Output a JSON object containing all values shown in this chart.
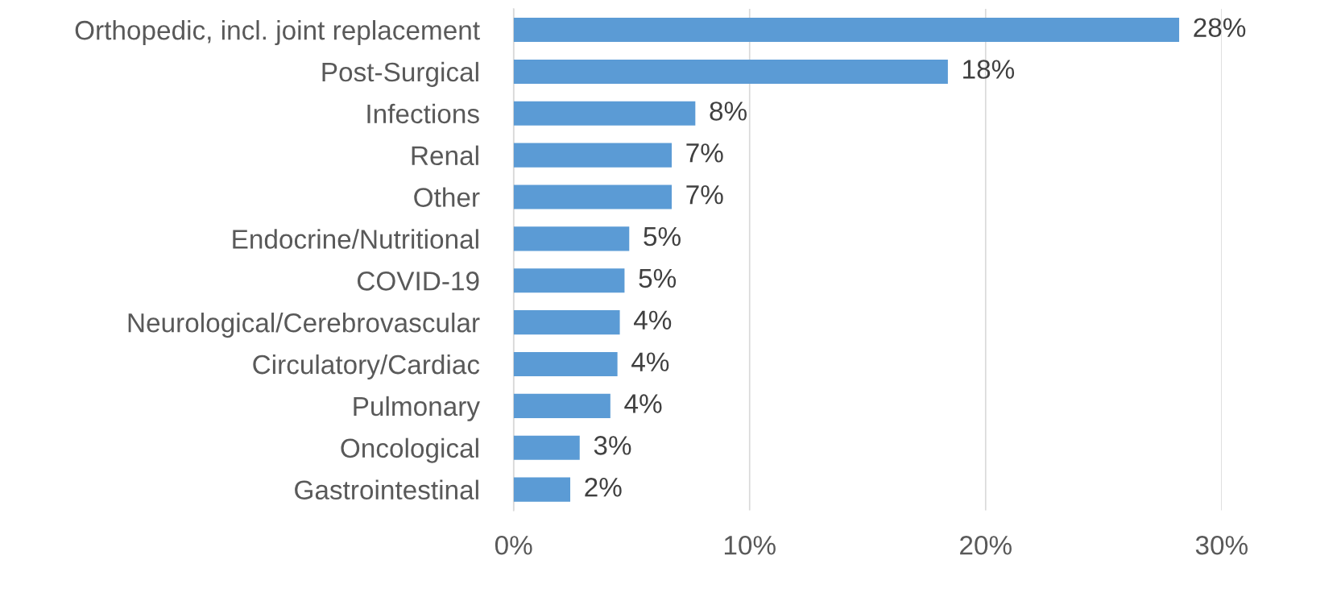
{
  "chart_data": {
    "type": "bar",
    "orientation": "horizontal",
    "categories": [
      "Orthopedic, incl. joint replacement",
      "Post-Surgical",
      "Infections",
      "Renal",
      "Other",
      "Endocrine/Nutritional",
      "COVID-19",
      "Neurological/Cerebrovascular",
      "Circulatory/Cardiac",
      "Pulmonary",
      "Oncological",
      "Gastrointestinal"
    ],
    "values": [
      28.2,
      18.4,
      7.7,
      6.7,
      6.7,
      4.9,
      4.7,
      4.5,
      4.4,
      4.1,
      2.8,
      2.4
    ],
    "value_labels": [
      "28%",
      "18%",
      "8%",
      "7%",
      "7%",
      "5%",
      "5%",
      "4%",
      "4%",
      "4%",
      "3%",
      "2%"
    ],
    "color": "#5b9bd5",
    "xlim": [
      0,
      30
    ],
    "xticks": [
      {
        "value": 0,
        "label": "0%"
      },
      {
        "value": 10,
        "label": "10%"
      },
      {
        "value": 20,
        "label": "20%"
      },
      {
        "value": 30,
        "label": "30%"
      }
    ],
    "grid": "x"
  }
}
